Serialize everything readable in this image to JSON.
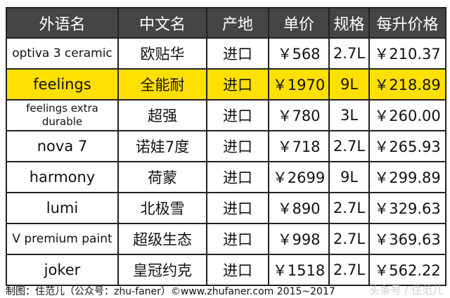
{
  "headers": [
    "外语名",
    "中文名",
    "产地",
    "单价",
    "规格",
    "每升价格"
  ],
  "highlight_color": "#FFE000",
  "rows": [
    {
      "foreign": "optiva 3 ceramic",
      "chinese": "欧贴华",
      "origin": "进口",
      "price": "￥568",
      "size": "2.7L",
      "per_liter": "￥210.37",
      "highlight": false
    },
    {
      "foreign": "feelings",
      "chinese": "全能耐",
      "origin": "进口",
      "price": "￥1970",
      "size": "9L",
      "per_liter": "￥218.89",
      "highlight": true
    },
    {
      "foreign": "feelings extra durable",
      "chinese": "超强",
      "origin": "进口",
      "price": "￥780",
      "size": "3L",
      "per_liter": "￥260.00",
      "highlight": false
    },
    {
      "foreign": "nova 7",
      "chinese": "诺娃7度",
      "origin": "进口",
      "price": "￥718",
      "size": "2.7L",
      "per_liter": "￥265.93",
      "highlight": false
    },
    {
      "foreign": "harmony",
      "chinese": "荷蒙",
      "origin": "进口",
      "price": "￥2699",
      "size": "9L",
      "per_liter": "￥299.89",
      "highlight": false
    },
    {
      "foreign": "lumi",
      "chinese": "北极雪",
      "origin": "进口",
      "price": "￥890",
      "size": "2.7L",
      "per_liter": "￥329.63",
      "highlight": false
    },
    {
      "foreign": "V premium paint",
      "chinese": "超级生态",
      "origin": "进口",
      "price": "￥998",
      "size": "2.7L",
      "per_liter": "￥369.63",
      "highlight": false
    },
    {
      "foreign": "joker",
      "chinese": "皇冠约克",
      "origin": "进口",
      "price": "￥1518",
      "size": "2.7L",
      "per_liter": "￥562.22",
      "highlight": false
    }
  ],
  "caption": "制图：住范儿（公众号：zhu-faner）©www.zhufaner.com 2015~2017",
  "watermark": "头条号 / 住范儿"
}
